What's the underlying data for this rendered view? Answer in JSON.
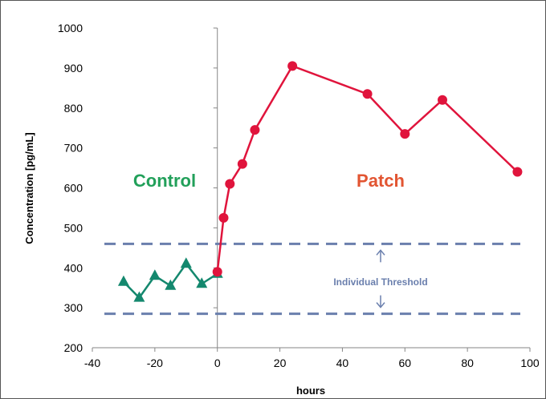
{
  "chart_data": {
    "type": "line",
    "xlabel": "hours",
    "ylabel": "Concentration [pg/mL]",
    "xlim": [
      -40,
      100
    ],
    "ylim": [
      200,
      1000
    ],
    "xticks": [
      -40,
      -20,
      0,
      20,
      40,
      60,
      80,
      100
    ],
    "yticks": [
      200,
      300,
      400,
      500,
      600,
      700,
      800,
      900,
      1000
    ],
    "grid": false,
    "series": [
      {
        "name": "Control",
        "color": "#14886e",
        "marker": "triangle",
        "x": [
          -30,
          -25,
          -20,
          -15,
          -10,
          -5,
          0
        ],
        "y": [
          365,
          325,
          380,
          355,
          410,
          360,
          385
        ]
      },
      {
        "name": "Patch",
        "color": "#e0143c",
        "marker": "circle",
        "x": [
          0,
          2,
          4,
          8,
          12,
          24,
          48,
          60,
          72,
          96
        ],
        "y": [
          390,
          525,
          610,
          660,
          745,
          905,
          835,
          735,
          820,
          640
        ]
      }
    ],
    "thresholds": [
      460,
      285
    ],
    "threshold_color": "#6a7fad",
    "annotations": {
      "control_label": "Control",
      "control_color": "#22a05a",
      "patch_label": "Patch",
      "patch_color": "#e25532",
      "threshold_label": "Individual Threshold"
    }
  }
}
